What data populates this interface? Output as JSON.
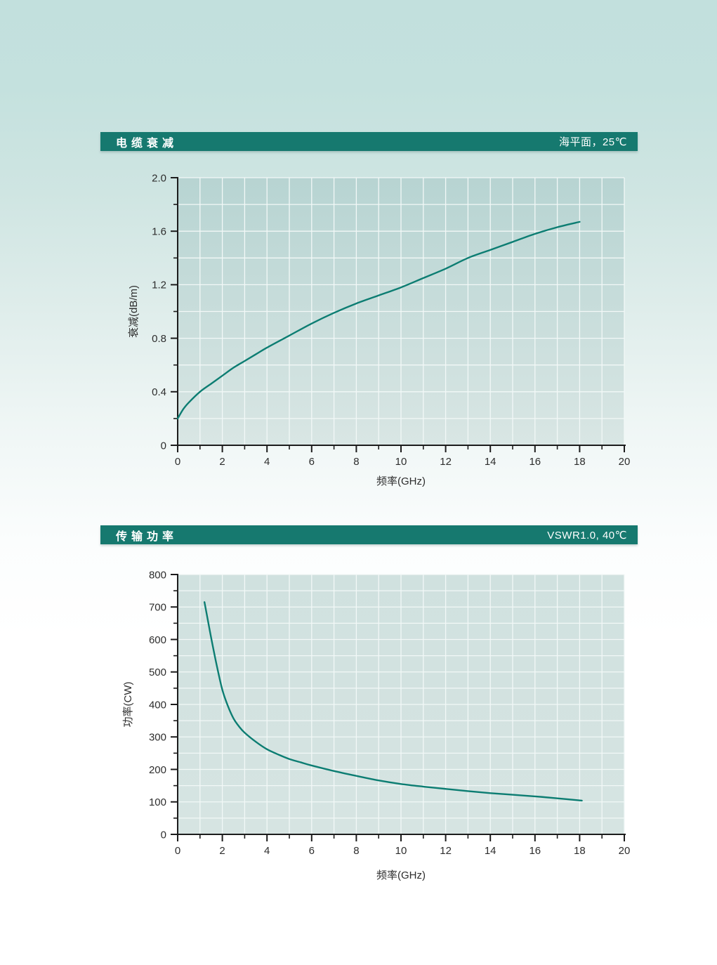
{
  "page": {
    "background_top_color": "#c2e0dd",
    "background_bottom_color": "#ffffff"
  },
  "chart_data": [
    {
      "type": "line",
      "title": "电缆衰减",
      "condition": "海平面，25℃",
      "xlabel": "频率(GHz)",
      "ylabel": "衰减(dB/m)",
      "xlim": [
        0,
        20
      ],
      "ylim": [
        0,
        2.0
      ],
      "x_tick_values": [
        0,
        2,
        4,
        6,
        8,
        10,
        12,
        14,
        16,
        18,
        20
      ],
      "x_tick_labels": [
        "0",
        "2",
        "4",
        "6",
        "8",
        "10",
        "12",
        "14",
        "16",
        "18",
        "20"
      ],
      "x_minor_step": 1,
      "y_tick_values": [
        0,
        0.4,
        0.8,
        1.2,
        1.6,
        2.0
      ],
      "y_tick_labels": [
        "0",
        "0.4",
        "0.8",
        "1.2",
        "1.6",
        "2.0"
      ],
      "y_minor_step": 0.2,
      "x_grid_step": 1,
      "y_grid_step": 0.2,
      "grid": true,
      "legend": "none",
      "colors": {
        "line": "#0c7d72",
        "header_bg": "#16796f",
        "panel_top": "#b7d4d2",
        "panel_bottom": "#d9e6e4",
        "grid_line": "#f2f8f7",
        "axis": "#1c1c1c"
      },
      "series": [
        {
          "name": "电缆衰减",
          "points": [
            [
              0,
              0.2
            ],
            [
              0.25,
              0.27
            ],
            [
              0.5,
              0.32
            ],
            [
              1,
              0.4
            ],
            [
              1.5,
              0.46
            ],
            [
              2,
              0.52
            ],
            [
              2.5,
              0.58
            ],
            [
              3,
              0.63
            ],
            [
              3.5,
              0.68
            ],
            [
              4,
              0.73
            ],
            [
              5,
              0.82
            ],
            [
              6,
              0.91
            ],
            [
              7,
              0.99
            ],
            [
              8,
              1.06
            ],
            [
              9,
              1.12
            ],
            [
              10,
              1.18
            ],
            [
              11,
              1.25
            ],
            [
              12,
              1.32
            ],
            [
              13,
              1.4
            ],
            [
              14,
              1.46
            ],
            [
              15,
              1.52
            ],
            [
              16,
              1.58
            ],
            [
              17,
              1.63
            ],
            [
              18,
              1.67
            ]
          ]
        }
      ]
    },
    {
      "type": "line",
      "title": "传输功率",
      "condition": "VSWR1.0, 40℃",
      "xlabel": "频率(GHz)",
      "ylabel": "功率(CW)",
      "xlim": [
        0,
        20
      ],
      "ylim": [
        0,
        800
      ],
      "x_tick_values": [
        0,
        2,
        4,
        6,
        8,
        10,
        12,
        14,
        16,
        18,
        20
      ],
      "x_tick_labels": [
        "0",
        "2",
        "4",
        "6",
        "8",
        "10",
        "12",
        "14",
        "16",
        "18",
        "20"
      ],
      "x_minor_step": 1,
      "y_tick_values": [
        0,
        100,
        200,
        300,
        400,
        500,
        600,
        700,
        800
      ],
      "y_tick_labels": [
        "0",
        "100",
        "200",
        "300",
        "400",
        "500",
        "600",
        "700",
        "800"
      ],
      "y_minor_step": 50,
      "x_grid_step": 1,
      "y_grid_step": 50,
      "grid": true,
      "legend": "none",
      "colors": {
        "line": "#0c7d72",
        "header_bg": "#16796f",
        "panel_top": "#d0e1df",
        "panel_bottom": "#d6e4e2",
        "grid_line": "#f2f8f7",
        "axis": "#1c1c1c"
      },
      "series": [
        {
          "name": "传输功率",
          "points": [
            [
              1.2,
              715
            ],
            [
              1.35,
              660
            ],
            [
              1.5,
              605
            ],
            [
              1.75,
              520
            ],
            [
              2,
              445
            ],
            [
              2.25,
              395
            ],
            [
              2.5,
              357
            ],
            [
              2.75,
              332
            ],
            [
              3,
              313
            ],
            [
              3.5,
              285
            ],
            [
              4,
              262
            ],
            [
              4.5,
              246
            ],
            [
              5,
              232
            ],
            [
              5.5,
              222
            ],
            [
              6,
              212
            ],
            [
              7,
              195
            ],
            [
              8,
              180
            ],
            [
              9,
              166
            ],
            [
              10,
              155
            ],
            [
              11,
              147
            ],
            [
              12,
              140
            ],
            [
              13,
              133
            ],
            [
              14,
              127
            ],
            [
              15,
              122
            ],
            [
              16,
              117
            ],
            [
              17,
              111
            ],
            [
              18.1,
              104
            ]
          ]
        }
      ]
    }
  ]
}
